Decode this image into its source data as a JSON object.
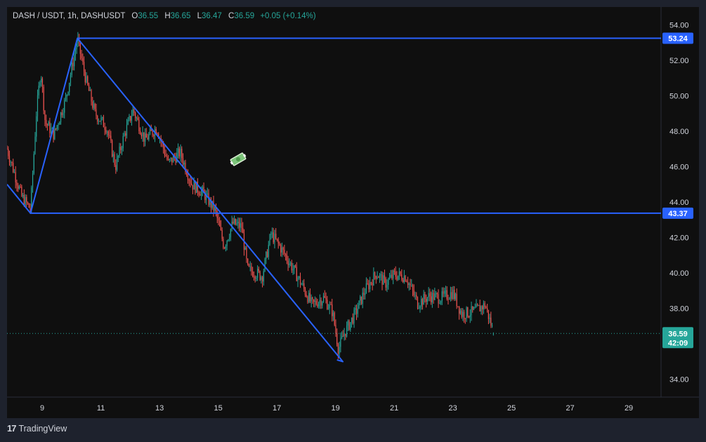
{
  "header": {
    "symbol": "DASH / USDT, 1h, DASHUSDT",
    "open_label": "O",
    "open": "36.55",
    "high_label": "H",
    "high": "36.65",
    "low_label": "L",
    "low": "36.47",
    "close_label": "C",
    "close": "36.59",
    "change": "+0.05 (+0.14%)"
  },
  "branding": {
    "logo": "17",
    "name": "TradingView"
  },
  "colors": {
    "up": "#26a69a",
    "down": "#ef5350",
    "drawing": "#2962ff",
    "price_line": "#26a69a",
    "background": "#0f0f0f"
  },
  "icons": {
    "drawing_marker": "money-icon"
  },
  "chart_data": {
    "type": "candlestick",
    "x_ticks": [
      "9",
      "11",
      "13",
      "15",
      "17",
      "19",
      "21",
      "23",
      "25",
      "27",
      "29"
    ],
    "x_tick_days": [
      9,
      11,
      13,
      15,
      17,
      19,
      21,
      23,
      25,
      27,
      29
    ],
    "x_range_days": [
      7.8,
      30.1
    ],
    "y_ticks": [
      "34.00",
      "36.00",
      "38.00",
      "40.00",
      "42.00",
      "44.00",
      "46.00",
      "48.00",
      "50.00",
      "52.00",
      "54.00"
    ],
    "y_tick_values": [
      34,
      36,
      38,
      40,
      42,
      44,
      46,
      48,
      50,
      52,
      54
    ],
    "ylim": [
      33.0,
      55.0
    ],
    "price_path": [
      [
        7.8,
        47.0
      ],
      [
        8.3,
        44.3
      ],
      [
        8.6,
        43.6
      ],
      [
        8.8,
        49.0
      ],
      [
        8.95,
        51.5
      ],
      [
        9.1,
        48.5
      ],
      [
        9.4,
        47.8
      ],
      [
        9.8,
        49.8
      ],
      [
        10.2,
        53.2
      ],
      [
        10.5,
        50.8
      ],
      [
        10.8,
        49.0
      ],
      [
        11.2,
        48.2
      ],
      [
        11.5,
        46.0
      ],
      [
        11.8,
        47.8
      ],
      [
        12.1,
        49.2
      ],
      [
        12.5,
        47.5
      ],
      [
        12.9,
        48.2
      ],
      [
        13.3,
        46.2
      ],
      [
        13.7,
        46.8
      ],
      [
        14.1,
        45.0
      ],
      [
        14.5,
        44.5
      ],
      [
        14.9,
        43.5
      ],
      [
        15.2,
        41.5
      ],
      [
        15.5,
        42.8
      ],
      [
        15.8,
        42.6
      ],
      [
        16.0,
        40.2
      ],
      [
        16.3,
        40.0
      ],
      [
        16.5,
        39.8
      ],
      [
        16.8,
        42.2
      ],
      [
        17.1,
        41.5
      ],
      [
        17.5,
        40.4
      ],
      [
        17.8,
        39.5
      ],
      [
        18.2,
        38.2
      ],
      [
        18.6,
        38.6
      ],
      [
        18.9,
        37.8
      ],
      [
        19.1,
        35.7
      ],
      [
        19.3,
        36.6
      ],
      [
        19.7,
        37.8
      ],
      [
        20.0,
        39.0
      ],
      [
        20.4,
        40.0
      ],
      [
        20.7,
        39.4
      ],
      [
        21.0,
        39.9
      ],
      [
        21.4,
        39.8
      ],
      [
        21.8,
        38.3
      ],
      [
        22.2,
        38.7
      ],
      [
        22.6,
        38.6
      ],
      [
        23.0,
        38.9
      ],
      [
        23.3,
        37.7
      ],
      [
        23.7,
        37.8
      ],
      [
        24.1,
        38.2
      ],
      [
        24.4,
        36.59
      ]
    ],
    "drawings": {
      "horizontal_lines": [
        {
          "value": 53.24,
          "label": "53.24"
        },
        {
          "value": 43.37,
          "label": "43.37"
        }
      ],
      "path": [
        [
          7.8,
          45.0
        ],
        [
          8.6,
          43.37
        ],
        [
          10.2,
          53.24
        ],
        [
          19.25,
          35.0
        ],
        [
          19.05,
          35.1
        ]
      ]
    },
    "last_price": {
      "value": 36.59,
      "label": "36.59",
      "countdown": "42:09"
    }
  }
}
